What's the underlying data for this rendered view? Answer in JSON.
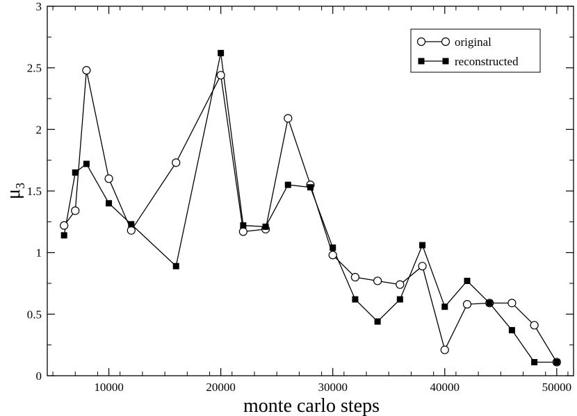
{
  "chart_data": {
    "type": "line",
    "xlabel": "monte carlo steps",
    "ylabel": "μ",
    "ylabel_subscript": "3",
    "xlim": [
      4500,
      51500
    ],
    "ylim": [
      0,
      3
    ],
    "xticks": [
      10000,
      20000,
      30000,
      40000,
      50000
    ],
    "yticks": [
      0,
      0.5,
      1,
      1.5,
      2,
      2.5,
      3
    ],
    "ytick_labels": [
      "0",
      "0.5",
      "1",
      "1.5",
      "2",
      "2.5",
      "3"
    ],
    "grid": false,
    "legend_position": "top-right",
    "series": [
      {
        "name": "original",
        "marker": "open-circle",
        "x": [
          6000,
          7000,
          8000,
          10000,
          12000,
          16000,
          20000,
          22000,
          24000,
          26000,
          28000,
          30000,
          32000,
          34000,
          36000,
          38000,
          40000,
          42000,
          44000,
          46000,
          48000,
          50000
        ],
        "y": [
          1.22,
          1.34,
          2.48,
          1.6,
          1.18,
          1.73,
          2.44,
          1.17,
          1.19,
          2.09,
          1.55,
          0.98,
          0.8,
          0.77,
          0.74,
          0.89,
          0.21,
          0.58,
          0.59,
          0.59,
          0.41,
          0.11
        ]
      },
      {
        "name": "reconstructed",
        "marker": "filled-square",
        "x": [
          6000,
          7000,
          8000,
          10000,
          12000,
          16000,
          20000,
          22000,
          24000,
          26000,
          28000,
          30000,
          32000,
          34000,
          36000,
          38000,
          40000,
          42000,
          44000,
          46000,
          48000,
          50000
        ],
        "y": [
          1.14,
          1.65,
          1.72,
          1.4,
          1.23,
          0.89,
          2.62,
          1.22,
          1.21,
          1.55,
          1.53,
          1.04,
          0.62,
          0.44,
          0.62,
          1.06,
          0.56,
          0.77,
          0.59,
          0.37,
          0.11,
          0.11
        ]
      }
    ]
  }
}
